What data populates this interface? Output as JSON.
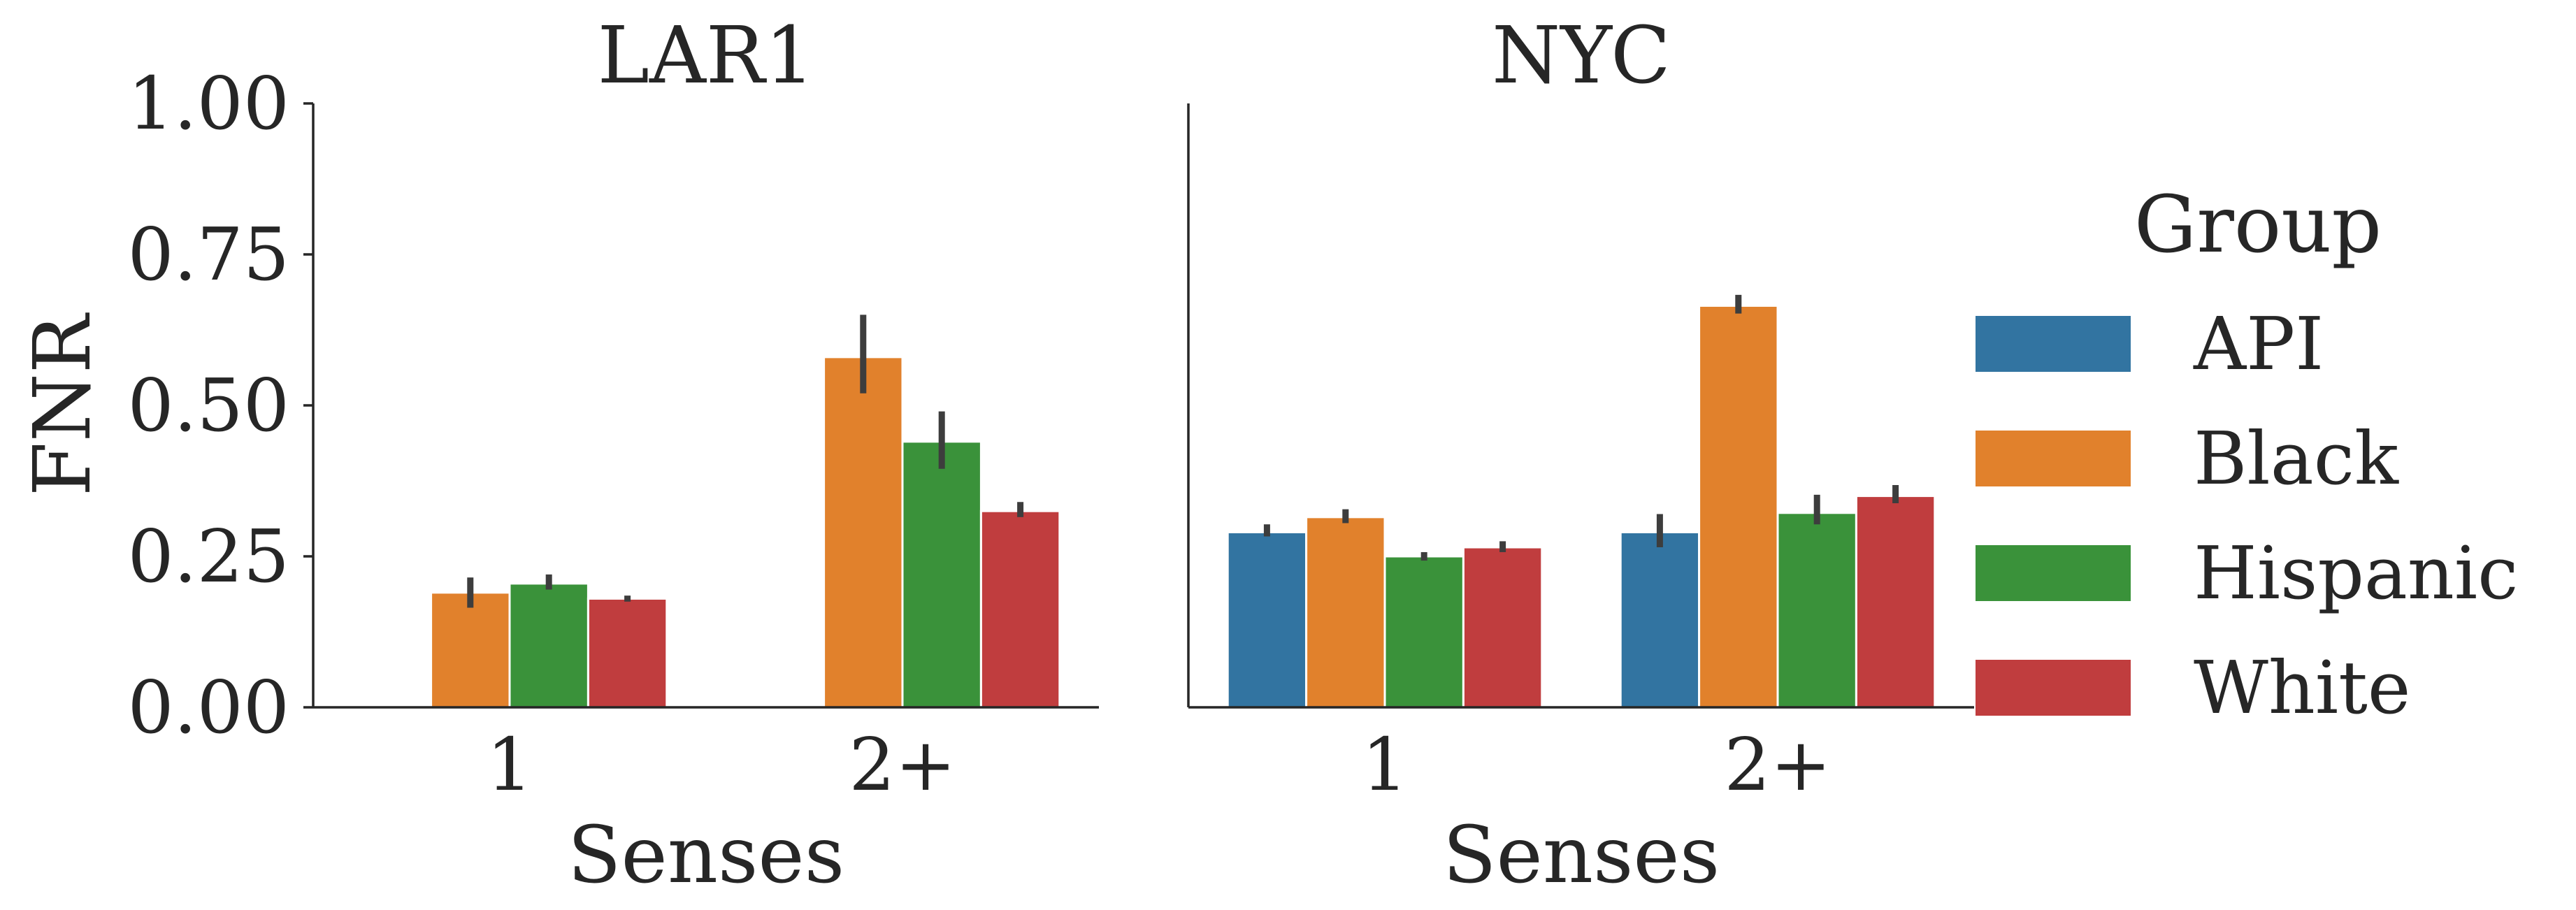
{
  "chart_data": {
    "type": "bar",
    "ylabel": "FNR",
    "ylim": [
      0,
      1
    ],
    "yticks": [
      "0.00",
      "0.25",
      "0.50",
      "0.75",
      "1.00"
    ],
    "grid": false,
    "legend": {
      "title": "Group",
      "placement": "right",
      "entries": [
        {
          "name": "API",
          "color": "#3274a1"
        },
        {
          "name": "Black",
          "color": "#e1812c"
        },
        {
          "name": "Hispanic",
          "color": "#3a923a"
        },
        {
          "name": "White",
          "color": "#c03d3e"
        }
      ]
    },
    "panels": [
      {
        "title": "LAR1",
        "xlabel": "Senses",
        "categories": [
          "1",
          "2+"
        ],
        "series": [
          {
            "name": "API",
            "values": [
              null,
              null
            ],
            "err_low": [
              null,
              null
            ],
            "err_high": [
              null,
              null
            ]
          },
          {
            "name": "Black",
            "values": [
              0.19,
              0.58
            ],
            "err_low": [
              0.165,
              0.52
            ],
            "err_high": [
              0.215,
              0.65
            ]
          },
          {
            "name": "Hispanic",
            "values": [
              0.205,
              0.44
            ],
            "err_low": [
              0.195,
              0.395
            ],
            "err_high": [
              0.22,
              0.49
            ]
          },
          {
            "name": "White",
            "values": [
              0.18,
              0.325
            ],
            "err_low": [
              0.175,
              0.315
            ],
            "err_high": [
              0.185,
              0.34
            ]
          }
        ]
      },
      {
        "title": "NYC",
        "xlabel": "Senses",
        "categories": [
          "1",
          "2+"
        ],
        "series": [
          {
            "name": "API",
            "values": [
              0.29,
              0.29
            ],
            "err_low": [
              0.283,
              0.265
            ],
            "err_high": [
              0.303,
              0.32
            ]
          },
          {
            "name": "Black",
            "values": [
              0.315,
              0.665
            ],
            "err_low": [
              0.305,
              0.652
            ],
            "err_high": [
              0.328,
              0.683
            ]
          },
          {
            "name": "Hispanic",
            "values": [
              0.25,
              0.322
            ],
            "err_low": [
              0.243,
              0.303
            ],
            "err_high": [
              0.257,
              0.352
            ]
          },
          {
            "name": "White",
            "values": [
              0.265,
              0.35
            ],
            "err_low": [
              0.257,
              0.338
            ],
            "err_high": [
              0.275,
              0.368
            ]
          }
        ]
      }
    ]
  }
}
